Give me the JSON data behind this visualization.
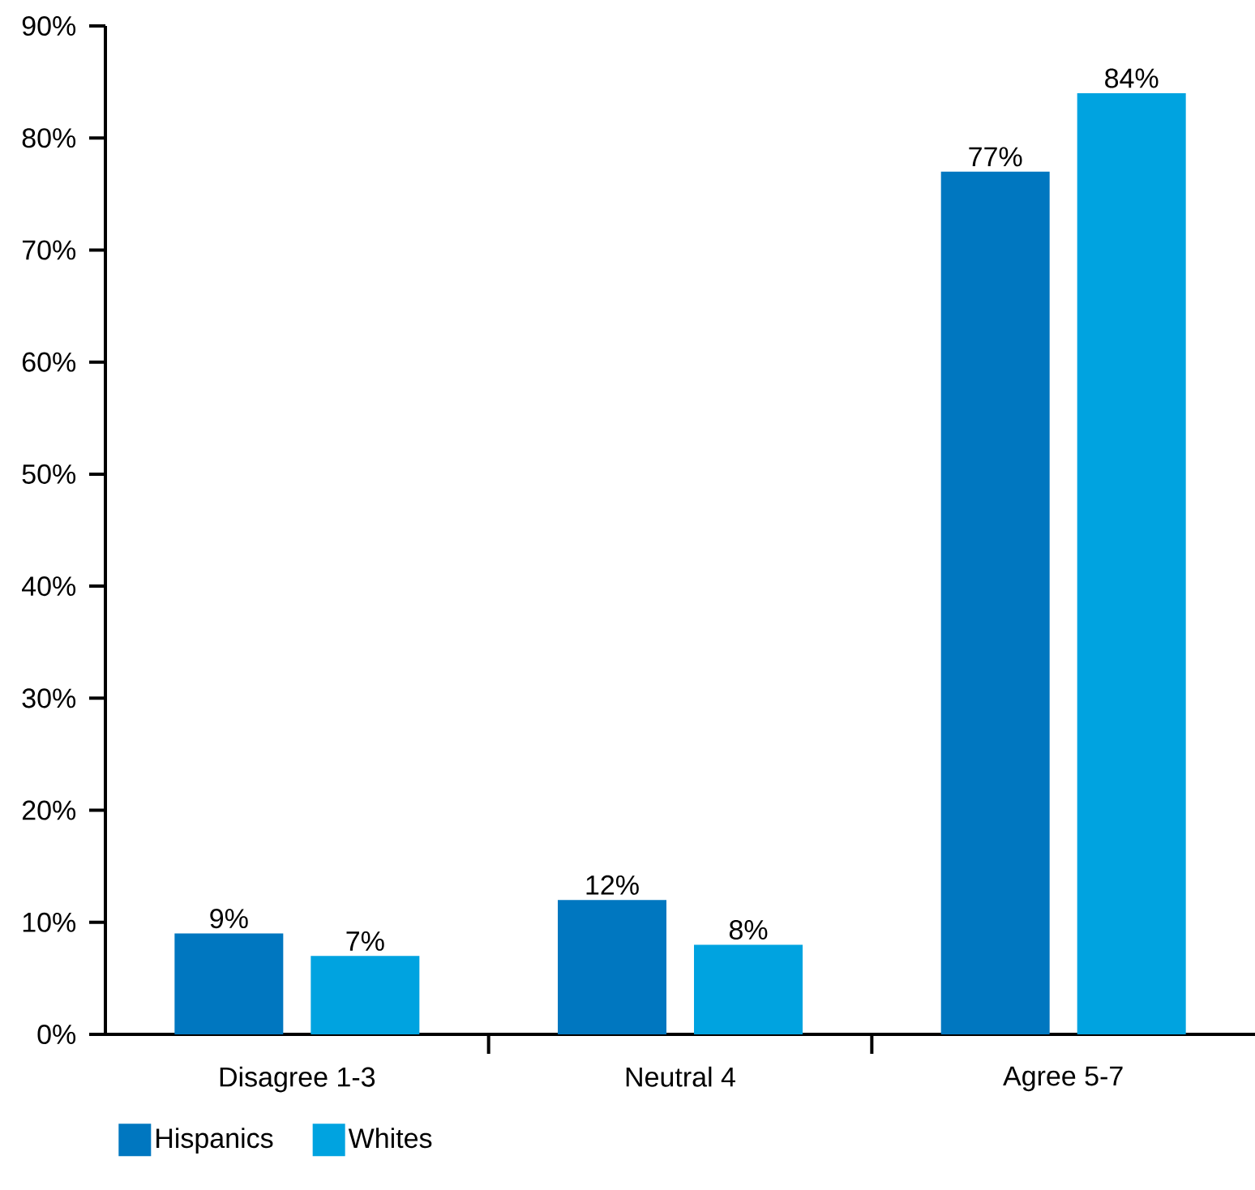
{
  "chart_data": {
    "type": "bar",
    "categories": [
      "Disagree 1-3",
      "Neutral 4",
      "Agree 5-7"
    ],
    "series": [
      {
        "name": "Hispanics",
        "color": "#0077c0",
        "values": [
          9,
          12,
          77
        ],
        "value_labels": [
          "9%",
          "12%",
          "77%"
        ]
      },
      {
        "name": "Whites",
        "color": "#00a3e0",
        "values": [
          7,
          8,
          84
        ],
        "value_labels": [
          "7%",
          "8%",
          "84%"
        ]
      }
    ],
    "ylim": [
      0,
      90
    ],
    "yticks": [
      {
        "value": 0,
        "label": "0%"
      },
      {
        "value": 10,
        "label": "10%"
      },
      {
        "value": 20,
        "label": "20%"
      },
      {
        "value": 30,
        "label": "30%"
      },
      {
        "value": 40,
        "label": "40%"
      },
      {
        "value": 50,
        "label": "50%"
      },
      {
        "value": 60,
        "label": "60%"
      },
      {
        "value": 70,
        "label": "70%"
      },
      {
        "value": 80,
        "label": "80%"
      },
      {
        "value": 90,
        "label": "90%"
      }
    ],
    "grid": false,
    "legend": "bottom left"
  }
}
